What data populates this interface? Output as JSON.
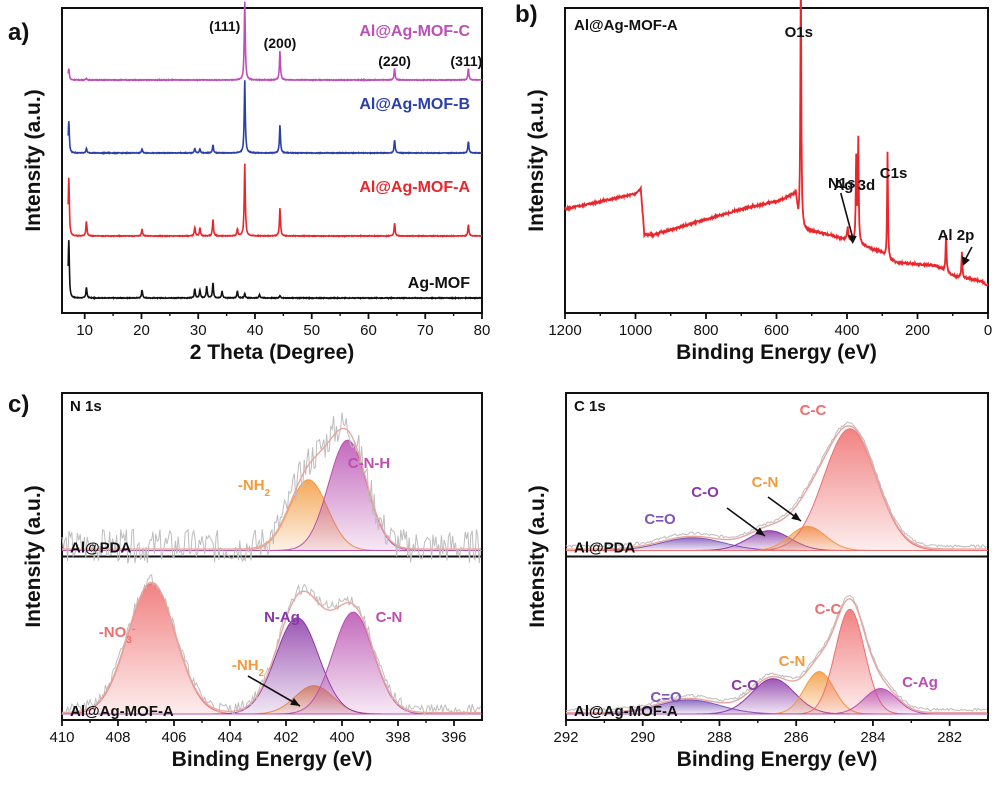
{
  "figure": {
    "panel_letters": [
      "a)",
      "b)",
      "c)"
    ]
  },
  "chart_data": [
    {
      "panel": "a)",
      "type": "line",
      "xlabel": "2 Theta (Degree)",
      "ylabel": "Intensity (a.u.)",
      "xlim": [
        6,
        80
      ],
      "x_ticks": [
        10,
        20,
        30,
        40,
        50,
        60,
        70,
        80
      ],
      "peak_labels": [
        {
          "x": 38.2,
          "text": "(111)"
        },
        {
          "x": 44.4,
          "text": "(200)"
        },
        {
          "x": 64.6,
          "text": "(220)"
        },
        {
          "x": 77.6,
          "text": "(311)"
        }
      ],
      "series": [
        {
          "name": "Ag-MOF",
          "color": "#111111",
          "offset": 0,
          "color_key": "black",
          "peaks": [
            [
              7.2,
              1.0
            ],
            [
              10.3,
              0.18
            ],
            [
              20.1,
              0.14
            ],
            [
              29.4,
              0.16
            ],
            [
              30.3,
              0.14
            ],
            [
              31.5,
              0.2
            ],
            [
              32.6,
              0.26
            ],
            [
              34.2,
              0.12
            ],
            [
              36.9,
              0.12
            ],
            [
              38.2,
              0.08
            ],
            [
              40.8,
              0.06
            ],
            [
              44.4,
              0.04
            ]
          ]
        },
        {
          "name": "Al@Ag-MOF-A",
          "color": "#e8262b",
          "offset": 1,
          "color_key": "red",
          "peaks": [
            [
              7.2,
              1.0
            ],
            [
              10.3,
              0.25
            ],
            [
              20.1,
              0.12
            ],
            [
              29.4,
              0.15
            ],
            [
              30.3,
              0.14
            ],
            [
              32.6,
              0.28
            ],
            [
              36.9,
              0.12
            ],
            [
              38.2,
              1.25
            ],
            [
              44.4,
              0.48
            ],
            [
              64.6,
              0.22
            ],
            [
              77.6,
              0.2
            ]
          ]
        },
        {
          "name": "Al@Ag-MOF-B",
          "color": "#2b3fa8",
          "offset": 2,
          "color_key": "blue",
          "peaks": [
            [
              7.2,
              0.55
            ],
            [
              10.3,
              0.08
            ],
            [
              20.1,
              0.07
            ],
            [
              29.4,
              0.08
            ],
            [
              30.3,
              0.07
            ],
            [
              32.6,
              0.14
            ],
            [
              38.2,
              1.25
            ],
            [
              44.4,
              0.48
            ],
            [
              64.6,
              0.22
            ],
            [
              77.6,
              0.2
            ]
          ]
        },
        {
          "name": "Al@Ag-MOF-C",
          "color": "#bc4fb8",
          "offset": 3,
          "color_key": "magenta",
          "peaks": [
            [
              7.2,
              0.2
            ],
            [
              10.3,
              0.03
            ],
            [
              38.2,
              1.35
            ],
            [
              44.4,
              0.5
            ],
            [
              64.6,
              0.2
            ],
            [
              77.6,
              0.2
            ]
          ]
        }
      ]
    },
    {
      "panel": "b)",
      "type": "line",
      "title": "Al@Ag-MOF-A",
      "xlabel": "Binding Energy (eV)",
      "ylabel": "Intensity (a.u.)",
      "xlim": [
        1200,
        0
      ],
      "x_ticks": [
        1200,
        1000,
        800,
        600,
        400,
        200,
        0
      ],
      "color": "#e8262b",
      "baseline": [
        [
          1200,
          0.3
        ],
        [
          1100,
          0.33
        ],
        [
          1000,
          0.36
        ],
        [
          985,
          0.38
        ],
        [
          975,
          0.2
        ],
        [
          950,
          0.2
        ],
        [
          900,
          0.22
        ],
        [
          800,
          0.26
        ],
        [
          700,
          0.3
        ],
        [
          600,
          0.33
        ],
        [
          545,
          0.36
        ],
        [
          538,
          0.26
        ],
        [
          520,
          0.22
        ],
        [
          450,
          0.2
        ],
        [
          400,
          0.18
        ],
        [
          380,
          0.17
        ],
        [
          300,
          0.13
        ],
        [
          285,
          0.1
        ],
        [
          250,
          0.09
        ],
        [
          150,
          0.08
        ],
        [
          120,
          0.06
        ],
        [
          100,
          0.04
        ],
        [
          60,
          0.03
        ],
        [
          20,
          0.02
        ],
        [
          0,
          0.0
        ]
      ],
      "peaks": [
        [
          531,
          1.0,
          3
        ],
        [
          398,
          0.05,
          4
        ],
        [
          374,
          0.33,
          3
        ],
        [
          368,
          0.4,
          3
        ],
        [
          285,
          0.42,
          3
        ],
        [
          119,
          0.14,
          3
        ],
        [
          74,
          0.1,
          3
        ]
      ],
      "peak_labels": [
        {
          "x": 531,
          "text": "O1s"
        },
        {
          "x": 398,
          "text": "N1s"
        },
        {
          "x": 368,
          "text": "Ag 3d"
        },
        {
          "x": 285,
          "text": "C1s"
        },
        {
          "x": 74,
          "text": "Al 2p"
        }
      ]
    },
    {
      "panel": "c)",
      "type": "area",
      "title": "N 1s",
      "xlabel": "Binding Energy (eV)",
      "ylabel": "Intensity (a.u.)",
      "xlim": [
        410,
        395
      ],
      "x_ticks": [
        410,
        408,
        406,
        404,
        402,
        400,
        398,
        396
      ],
      "subplots": [
        {
          "sample": "Al@PDA",
          "noise": 0.12,
          "components": [
            {
              "label": "-NH2",
              "display": "-NH",
              "subscript": "2",
              "center": 401.2,
              "height": 0.5,
              "fwhm": 1.6,
              "color": "#f39a3d"
            },
            {
              "label": "C-N-H",
              "center": 399.8,
              "height": 0.78,
              "fwhm": 1.6,
              "color": "#b94fb0"
            }
          ]
        },
        {
          "sample": "Al@Ag-MOF-A",
          "noise": 0.04,
          "components": [
            {
              "label": "-NO3-",
              "display": "-NO",
              "subscript": "3",
              "superscript": "-",
              "center": 406.8,
              "height": 0.92,
              "fwhm": 2.0,
              "color": "#ef6d6d"
            },
            {
              "label": "-NH2",
              "display": "-NH",
              "subscript": "2",
              "center": 401.0,
              "height": 0.2,
              "fwhm": 1.6,
              "color": "#f39a3d"
            },
            {
              "label": "N-Ag",
              "center": 401.6,
              "height": 0.68,
              "fwhm": 1.8,
              "color": "#8a38a6"
            },
            {
              "label": "C-N",
              "center": 399.6,
              "height": 0.72,
              "fwhm": 1.7,
              "color": "#b94fb0"
            }
          ]
        }
      ]
    },
    {
      "panel": "c)",
      "type": "area",
      "title": "C 1s",
      "xlabel": "Binding Energy (eV)",
      "ylabel": "Intensity (a.u.)",
      "xlim": [
        292,
        281
      ],
      "x_ticks": [
        292,
        290,
        288,
        286,
        284,
        282
      ],
      "subplots": [
        {
          "sample": "Al@PDA",
          "noise": 0.01,
          "components": [
            {
              "label": "C=O",
              "center": 288.7,
              "height": 0.09,
              "fwhm": 1.9,
              "color": "#7e55b8"
            },
            {
              "label": "C-O",
              "center": 286.7,
              "height": 0.14,
              "fwhm": 1.3,
              "color": "#8a38a6"
            },
            {
              "label": "C-N",
              "center": 285.7,
              "height": 0.17,
              "fwhm": 1.1,
              "color": "#f39a3d"
            },
            {
              "label": "C-C",
              "center": 284.6,
              "height": 0.86,
              "fwhm": 1.6,
              "color": "#ef6d6d"
            }
          ]
        },
        {
          "sample": "Al@Ag-MOF-A",
          "noise": 0.01,
          "components": [
            {
              "label": "C=O",
              "center": 288.8,
              "height": 0.1,
              "fwhm": 1.9,
              "color": "#7e55b8"
            },
            {
              "label": "C-O",
              "center": 286.6,
              "height": 0.25,
              "fwhm": 1.3,
              "color": "#8a38a6"
            },
            {
              "label": "C-N",
              "center": 285.4,
              "height": 0.3,
              "fwhm": 0.9,
              "color": "#f39a3d"
            },
            {
              "label": "C-C",
              "center": 284.6,
              "height": 0.74,
              "fwhm": 0.9,
              "color": "#ef6d6d"
            },
            {
              "label": "C-Ag",
              "center": 283.8,
              "height": 0.18,
              "fwhm": 1.0,
              "color": "#b94fb0"
            }
          ]
        }
      ]
    }
  ]
}
